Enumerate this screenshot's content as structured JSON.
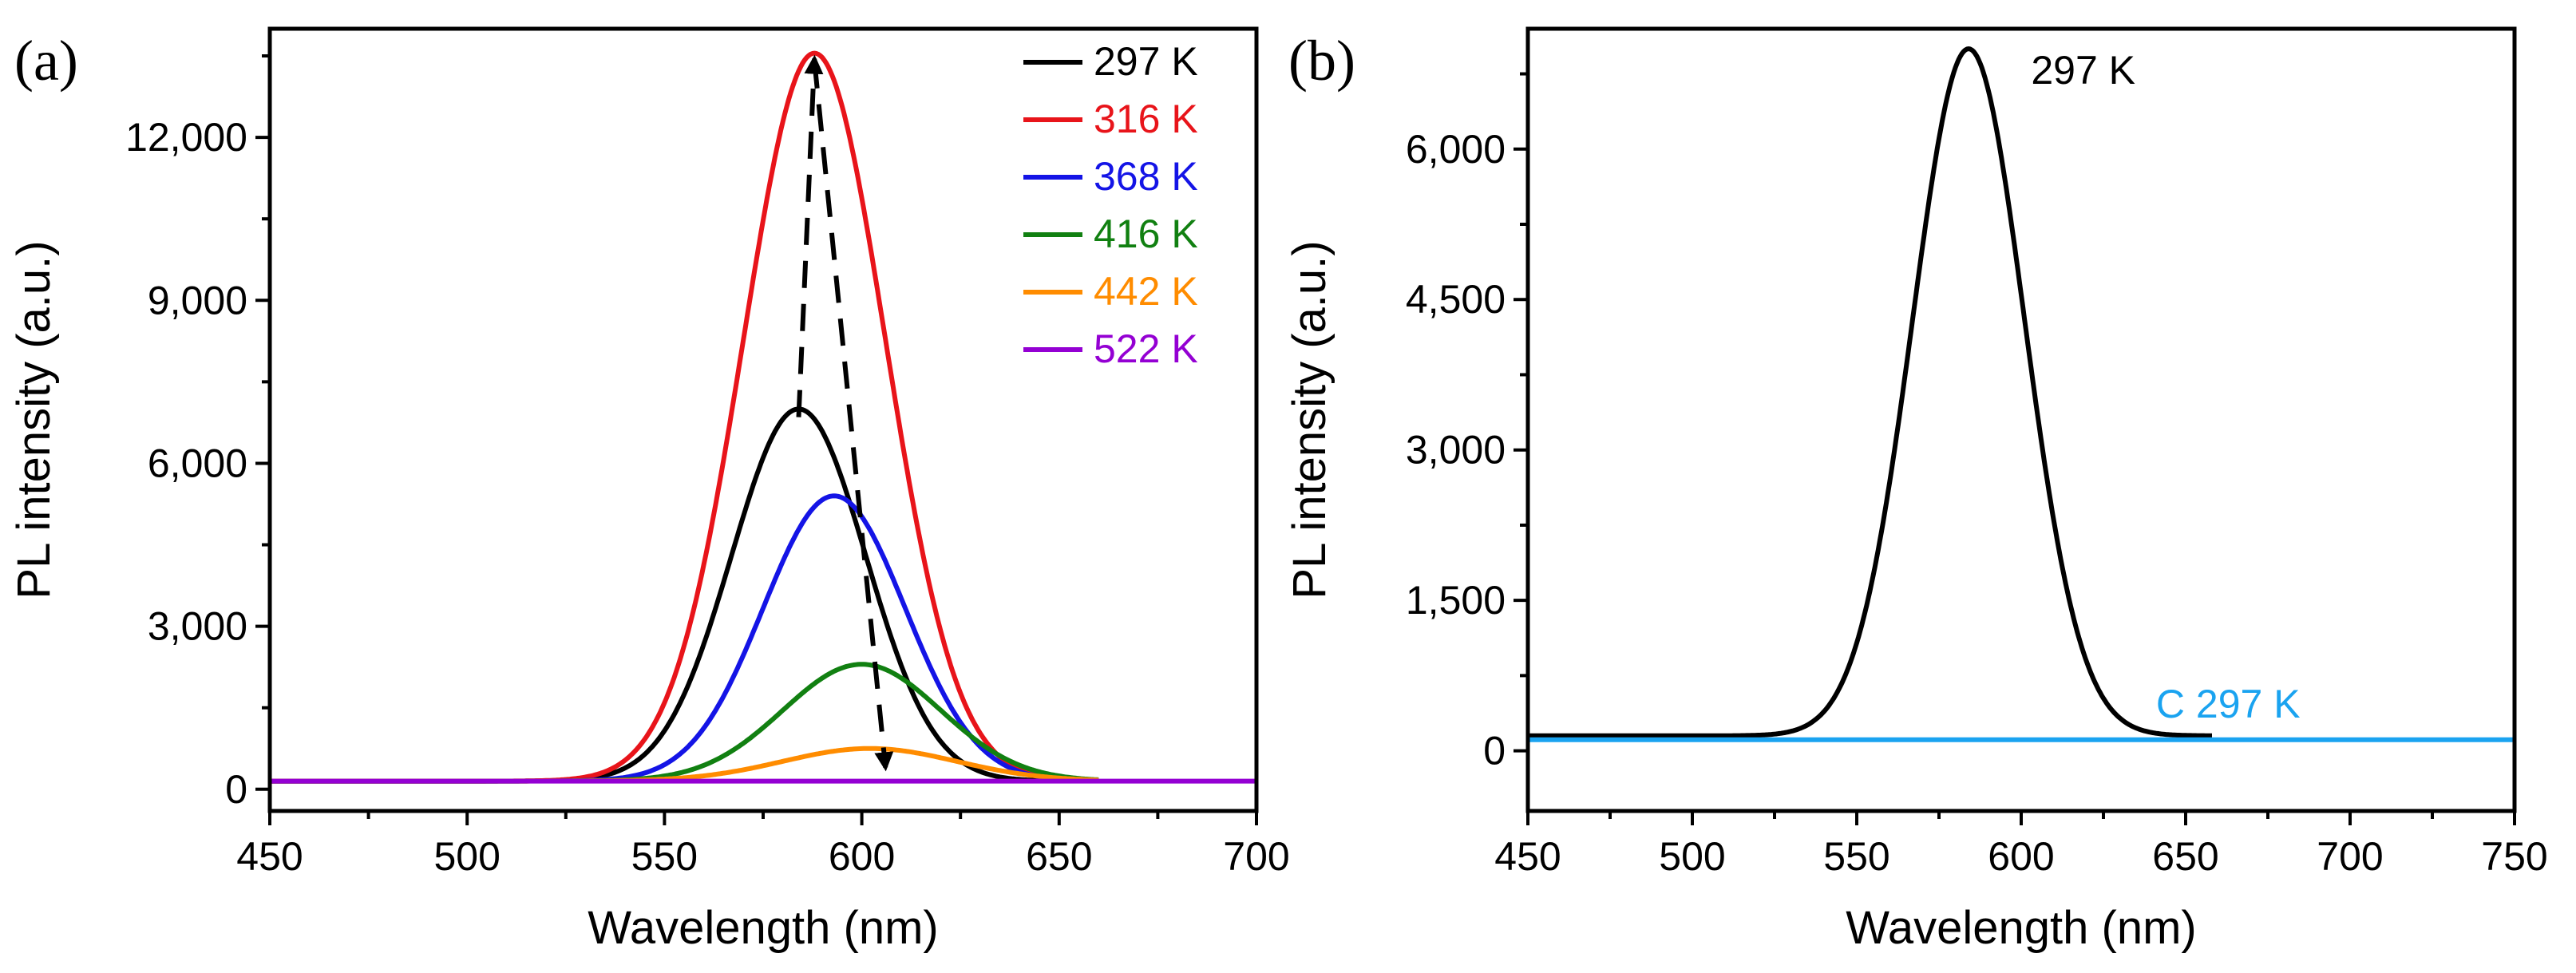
{
  "chart_data": [
    {
      "type": "line",
      "panel_label": "(a)",
      "xlabel": "Wavelength (nm)",
      "ylabel": "PL intensity (a.u.)",
      "xlim": [
        450,
        700
      ],
      "ylim": [
        -400,
        14000
      ],
      "xticks": [
        450,
        500,
        550,
        600,
        650,
        700
      ],
      "xtick_labels": [
        "450",
        "500",
        "550",
        "600",
        "650",
        "700"
      ],
      "yticks": [
        0,
        3000,
        6000,
        9000,
        12000
      ],
      "ytick_labels": [
        "0",
        "3,000",
        "6,000",
        "9,000",
        "12,000"
      ],
      "legend_position": "top-right",
      "series": [
        {
          "name": "297 K",
          "color": "#000000",
          "peak_nm": 584,
          "peak": 6850,
          "sigma_nm": 17,
          "baseline": 150,
          "x_range": [
            450,
            660
          ]
        },
        {
          "name": "316 K",
          "color": "#e8141a",
          "peak_nm": 588,
          "peak": 13400,
          "sigma_nm": 18,
          "baseline": 150,
          "x_range": [
            450,
            660
          ]
        },
        {
          "name": "368 K",
          "color": "#1414e6",
          "peak_nm": 593,
          "peak": 5250,
          "sigma_nm": 18,
          "baseline": 150,
          "x_range": [
            450,
            660
          ]
        },
        {
          "name": "416 K",
          "color": "#118011",
          "peak_nm": 600,
          "peak": 2150,
          "sigma_nm": 20,
          "baseline": 150,
          "x_range": [
            450,
            660
          ]
        },
        {
          "name": "442 K",
          "color": "#ff8c00",
          "peak_nm": 602,
          "peak": 600,
          "sigma_nm": 22,
          "baseline": 150,
          "x_range": [
            450,
            660
          ]
        },
        {
          "name": "522 K",
          "color": "#9400d3",
          "peak_nm": 600,
          "peak": 0,
          "sigma_nm": 20,
          "baseline": 150,
          "x_range": [
            450,
            700
          ]
        }
      ],
      "arrows": [
        {
          "from": [
            584,
            6850
          ],
          "to": [
            588,
            13450
          ],
          "style": "dashed"
        },
        {
          "from": [
            588,
            13400
          ],
          "to": [
            606,
            400
          ],
          "style": "dashed"
        }
      ]
    },
    {
      "type": "line",
      "panel_label": "(b)",
      "xlabel": "Wavelength (nm)",
      "ylabel": "PL intensity (a.u.)",
      "xlim": [
        450,
        750
      ],
      "ylim": [
        -600,
        7200
      ],
      "xticks": [
        450,
        500,
        550,
        600,
        650,
        700,
        750
      ],
      "xtick_labels": [
        "450",
        "500",
        "550",
        "600",
        "650",
        "700",
        "750"
      ],
      "yticks": [
        0,
        1500,
        3000,
        4500,
        6000
      ],
      "ytick_labels": [
        "0",
        "1,500",
        "3,000",
        "4,500",
        "6,000"
      ],
      "series": [
        {
          "name": "297 K",
          "color": "#000000",
          "peak_nm": 584,
          "peak": 6850,
          "sigma_nm": 17,
          "baseline": 150,
          "x_range": [
            450,
            658
          ]
        },
        {
          "name": "C 297 K",
          "color": "#1aa3f0",
          "peak_nm": 600,
          "peak": 0,
          "sigma_nm": 20,
          "baseline": 110,
          "x_range": [
            450,
            750
          ]
        }
      ],
      "annotations": [
        {
          "text": "297 K",
          "color": "#000000",
          "at": [
            603,
            6650
          ]
        },
        {
          "text": "C 297 K",
          "color": "#1aa3f0",
          "at": [
            641,
            330
          ]
        }
      ]
    }
  ]
}
